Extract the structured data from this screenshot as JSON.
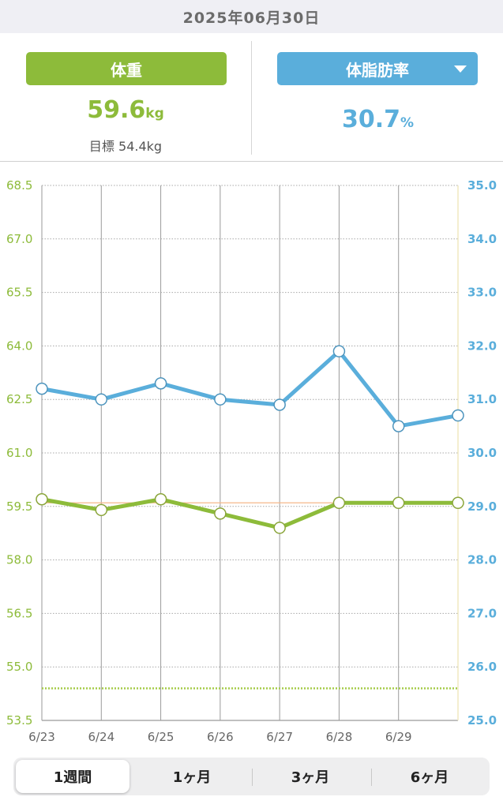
{
  "header": {
    "date": "2025年06月30日"
  },
  "left_panel": {
    "button_label": "体重",
    "value": "59.6",
    "unit": "kg",
    "target_label": "目標 54.4kg"
  },
  "right_panel": {
    "button_label": "体脂肪率",
    "value": "30.7",
    "unit": "%"
  },
  "tabs": [
    {
      "label": "1週間",
      "active": true
    },
    {
      "label": "1ヶ月",
      "active": false
    },
    {
      "label": "3ヶ月",
      "active": false
    },
    {
      "label": "6ヶ月",
      "active": false
    }
  ],
  "colors": {
    "weight": "#8dbb3a",
    "fat": "#5aaedb",
    "grid": "#9a9a9a",
    "target_line": "#a6cc4a",
    "current_line": "#f4b88a"
  },
  "chart_data": {
    "type": "line",
    "categories": [
      "6/23",
      "6/24",
      "6/25",
      "6/26",
      "6/27",
      "6/28",
      "6/29",
      "6/30"
    ],
    "x_tick_labels": [
      "6/23",
      "6/24",
      "6/25",
      "6/26",
      "6/27",
      "6/28",
      "6/29"
    ],
    "y_left": {
      "ylim": [
        53.5,
        68.5
      ],
      "ticks": [
        "68.5",
        "67.0",
        "65.5",
        "64.0",
        "62.5",
        "61.0",
        "59.5",
        "58.0",
        "56.5",
        "55.0",
        "53.5"
      ]
    },
    "y_right": {
      "ylim": [
        25.0,
        35.0
      ],
      "ticks": [
        "35.0",
        "34.0",
        "33.0",
        "32.0",
        "31.0",
        "30.0",
        "29.0",
        "28.0",
        "27.0",
        "26.0",
        "25.0"
      ]
    },
    "series": [
      {
        "axis": "left",
        "values": [
          59.7,
          59.4,
          59.7,
          59.3,
          58.9,
          59.6,
          59.6,
          59.6
        ]
      },
      {
        "axis": "right",
        "values": [
          31.2,
          31.0,
          31.3,
          31.0,
          30.9,
          31.9,
          30.5,
          30.7
        ]
      }
    ],
    "reference_lines": [
      {
        "axis": "left",
        "value": 54.4,
        "style": "dotted",
        "color": "#a6cc4a"
      },
      {
        "axis": "left",
        "value": 59.6,
        "style": "solid",
        "color": "#f4b88a"
      }
    ],
    "grid": true
  }
}
